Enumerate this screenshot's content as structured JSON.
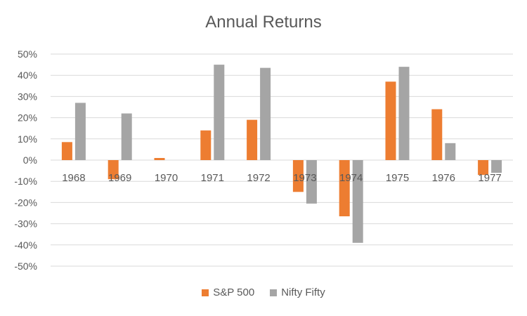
{
  "chart_data": {
    "type": "bar",
    "title": "Annual Returns",
    "xlabel": "",
    "ylabel": "",
    "categories": [
      "1968",
      "1969",
      "1970",
      "1971",
      "1972",
      "1973",
      "1974",
      "1975",
      "1976",
      "1977"
    ],
    "series": [
      {
        "name": "S&P 500",
        "color": "#ED7D31",
        "values": [
          8.5,
          -9,
          1,
          14,
          19,
          -15,
          -26.5,
          37,
          24,
          -7
        ]
      },
      {
        "name": "Nifty Fifty",
        "color": "#A5A5A5",
        "values": [
          27,
          22,
          0,
          45,
          43.5,
          -20.5,
          -39,
          44,
          8,
          -6
        ]
      }
    ],
    "ylim": [
      -50,
      50
    ],
    "yticks": [
      50,
      40,
      30,
      20,
      10,
      0,
      -10,
      -20,
      -30,
      -40,
      -50
    ],
    "ytick_labels": [
      "50%",
      "40%",
      "30%",
      "20%",
      "10%",
      "0%",
      "-10%",
      "-20%",
      "-30%",
      "-40%",
      "-50%"
    ],
    "grid": true,
    "legend_position": "bottom"
  }
}
